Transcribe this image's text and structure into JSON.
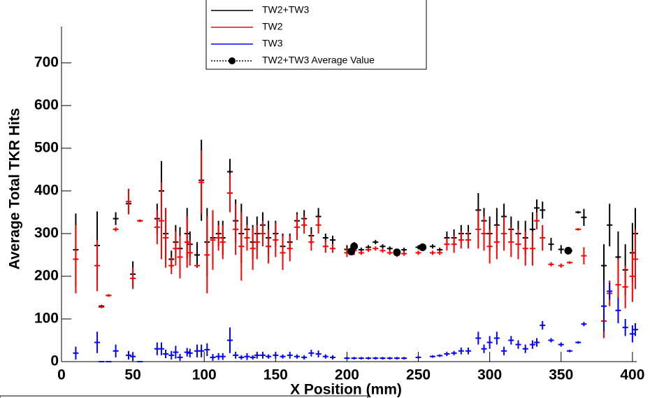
{
  "chart_data": {
    "type": "errorbar",
    "xlabel": "X Position (mm)",
    "ylabel": "Average Total TKR Hits",
    "xlim": [
      0,
      403
    ],
    "ylim": [
      0,
      785
    ],
    "xticks": [
      0,
      50,
      100,
      150,
      200,
      250,
      300,
      350,
      400
    ],
    "yticks": [
      0,
      100,
      200,
      300,
      400,
      500,
      600,
      700
    ],
    "x": [
      10,
      25,
      28,
      33,
      38,
      47,
      50,
      55,
      67,
      70,
      73,
      77,
      80,
      83,
      88,
      90,
      95,
      98,
      102,
      106,
      110,
      113,
      118,
      122,
      126,
      130,
      134,
      137,
      141,
      145,
      150,
      155,
      160,
      165,
      170,
      175,
      180,
      185,
      190,
      200,
      205,
      210,
      215,
      220,
      225,
      230,
      235,
      240,
      250,
      260,
      265,
      270,
      275,
      280,
      285,
      292,
      296,
      300,
      305,
      310,
      315,
      320,
      325,
      330,
      333,
      337,
      343,
      350,
      356,
      362,
      366,
      380,
      384,
      390,
      395,
      400,
      402
    ],
    "series": [
      {
        "name": "TW2+TW3",
        "color": "#000000",
        "values": [
          262,
          272,
          130,
          155,
          335,
          370,
          205,
          330,
          335,
          400,
          300,
          240,
          280,
          265,
          300,
          275,
          250,
          425,
          280,
          290,
          300,
          290,
          445,
          330,
          300,
          310,
          280,
          300,
          320,
          290,
          300,
          270,
          280,
          330,
          335,
          295,
          340,
          290,
          285,
          263,
          270,
          262,
          268,
          280,
          270,
          265,
          258,
          262,
          268,
          270,
          262,
          290,
          290,
          300,
          300,
          355,
          330,
          300,
          320,
          340,
          310,
          300,
          290,
          310,
          360,
          355,
          275,
          263,
          260,
          350,
          338,
          225,
          320,
          245,
          215,
          255,
          300
        ],
        "errors": [
          85,
          80,
          3,
          3,
          15,
          25,
          30,
          3,
          35,
          70,
          60,
          20,
          40,
          50,
          60,
          30,
          30,
          95,
          80,
          60,
          30,
          40,
          30,
          50,
          70,
          30,
          40,
          40,
          30,
          40,
          30,
          30,
          20,
          20,
          20,
          20,
          20,
          10,
          10,
          10,
          10,
          5,
          5,
          5,
          5,
          5,
          5,
          5,
          5,
          5,
          5,
          15,
          20,
          20,
          20,
          40,
          30,
          40,
          40,
          30,
          30,
          30,
          40,
          40,
          20,
          20,
          15,
          10,
          5,
          3,
          20,
          50,
          50,
          60,
          60,
          70,
          60
        ]
      },
      {
        "name": "TW2",
        "color": "#ff0000",
        "values": [
          240,
          225,
          128,
          155,
          310,
          375,
          195,
          330,
          315,
          330,
          290,
          225,
          265,
          245,
          280,
          255,
          225,
          420,
          250,
          285,
          290,
          280,
          395,
          310,
          270,
          290,
          265,
          280,
          300,
          270,
          285,
          255,
          265,
          315,
          320,
          280,
          320,
          270,
          265,
          255,
          260,
          255,
          262,
          265,
          260,
          255,
          250,
          253,
          255,
          255,
          255,
          275,
          275,
          285,
          285,
          310,
          300,
          270,
          280,
          300,
          280,
          275,
          265,
          265,
          330,
          290,
          228,
          225,
          232,
          310,
          248,
          95,
          160,
          180,
          175,
          200,
          240
        ],
        "errors": [
          80,
          60,
          3,
          3,
          5,
          30,
          25,
          3,
          40,
          90,
          70,
          20,
          40,
          50,
          60,
          30,
          3,
          75,
          90,
          70,
          30,
          40,
          45,
          60,
          80,
          30,
          50,
          40,
          30,
          40,
          40,
          40,
          30,
          30,
          20,
          20,
          20,
          15,
          10,
          10,
          10,
          5,
          5,
          5,
          5,
          5,
          5,
          5,
          5,
          5,
          5,
          15,
          20,
          20,
          20,
          45,
          40,
          40,
          40,
          40,
          35,
          35,
          40,
          40,
          20,
          30,
          5,
          5,
          3,
          3,
          20,
          40,
          30,
          60,
          50,
          60,
          70
        ]
      },
      {
        "name": "TW3",
        "color": "#0000ff",
        "values": [
          20,
          45,
          0,
          0,
          25,
          15,
          12,
          0,
          30,
          30,
          18,
          15,
          22,
          10,
          22,
          20,
          25,
          25,
          28,
          10,
          12,
          12,
          50,
          15,
          10,
          12,
          10,
          15,
          15,
          12,
          15,
          12,
          15,
          12,
          10,
          20,
          18,
          12,
          10,
          8,
          8,
          8,
          8,
          8,
          8,
          8,
          8,
          8,
          10,
          12,
          14,
          18,
          20,
          25,
          25,
          55,
          30,
          45,
          55,
          25,
          50,
          40,
          30,
          40,
          45,
          85,
          50,
          40,
          25,
          45,
          88,
          130,
          165,
          120,
          80,
          65,
          75
        ],
        "errors": [
          15,
          25,
          0,
          0,
          15,
          10,
          10,
          0,
          15,
          15,
          10,
          10,
          15,
          8,
          10,
          10,
          15,
          15,
          15,
          8,
          8,
          8,
          30,
          8,
          5,
          8,
          5,
          8,
          8,
          5,
          8,
          5,
          8,
          5,
          5,
          8,
          8,
          5,
          5,
          3,
          3,
          3,
          3,
          3,
          3,
          3,
          3,
          3,
          3,
          3,
          3,
          5,
          5,
          8,
          8,
          15,
          10,
          15,
          15,
          10,
          10,
          10,
          10,
          10,
          10,
          10,
          5,
          5,
          3,
          3,
          5,
          60,
          20,
          30,
          20,
          20,
          15
        ]
      },
      {
        "name": "TW2+TW3 Average Value",
        "color": "#000000",
        "x": [
          203,
          205,
          235,
          253,
          355
        ],
        "values": [
          258,
          270,
          256,
          268,
          260
        ]
      }
    ]
  }
}
